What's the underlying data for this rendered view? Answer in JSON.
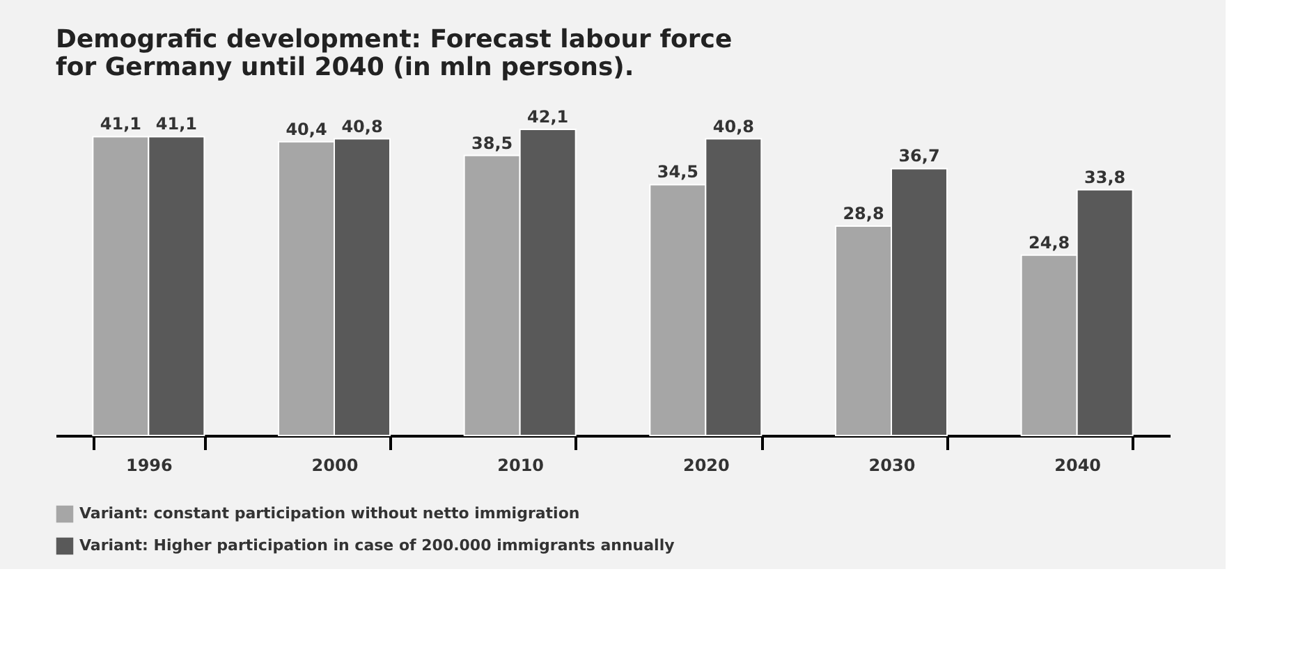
{
  "chart_data": {
    "type": "bar",
    "title": "Demografic development: Forecast labour force for Germany until 2040 (in mln persons).",
    "categories": [
      "1996",
      "2000",
      "2010",
      "2020",
      "2030",
      "2040"
    ],
    "series": [
      {
        "name": "Variant: constant participation without netto immigration",
        "color": "#a6a6a6",
        "values": [
          41.1,
          40.4,
          38.5,
          34.5,
          28.8,
          24.8
        ],
        "value_labels": [
          "41,1",
          "40,4",
          "38,5",
          "34,5",
          "28,8",
          "24,8"
        ]
      },
      {
        "name": "Variant: Higher participation in case of 200.000 immigrants annually",
        "color": "#595959",
        "values": [
          41.1,
          40.8,
          42.1,
          40.8,
          36.7,
          33.8
        ],
        "value_labels": [
          "41,1",
          "40,8",
          "42,1",
          "40,8",
          "36,7",
          "33,8"
        ]
      }
    ],
    "legend": "bottom left",
    "grid": false
  }
}
